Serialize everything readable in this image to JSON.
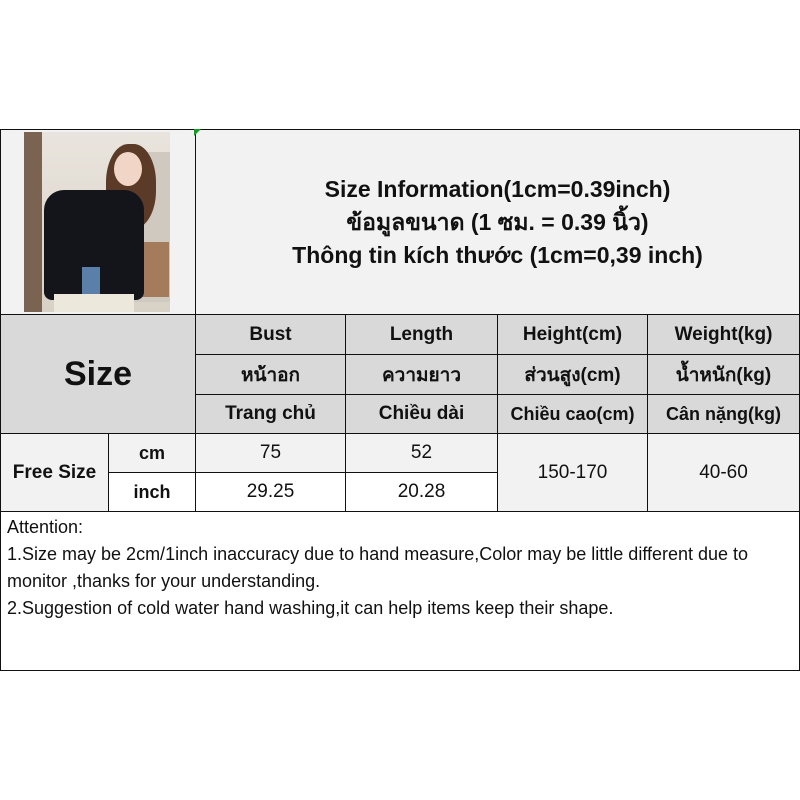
{
  "title_lines": [
    "Size Information(1cm=0.39inch)",
    "ข้อมูลขนาด (1 ซม. = 0.39 นิ้ว)",
    "Thông tin kích thước (1cm=0,39 inch)"
  ],
  "size_label": "Size",
  "headers": [
    [
      "Bust",
      "Length",
      "Height(cm)",
      "Weight(kg)"
    ],
    [
      "หน้าอก",
      "ความยาว",
      "ส่วนสูง(cm)",
      "น้ำหนัก(kg)"
    ],
    [
      "Trang chủ",
      "Chiều dài",
      "Chiều cao(cm)",
      "Cân nặng(kg)"
    ]
  ],
  "size_name": "Free Size",
  "rows": [
    {
      "unit": "cm",
      "bust": "75",
      "length": "52"
    },
    {
      "unit": "inch",
      "bust": "29.25",
      "length": "20.28"
    }
  ],
  "height": "150-170",
  "weight": "40-60",
  "attention": [
    "Attention:",
    "1.Size may be 2cm/1inch inaccuracy due to hand measure,Color may be little different due to monitor ,thanks for your understanding.",
    "2.Suggestion of cold water hand washing,it can help items keep their shape."
  ]
}
